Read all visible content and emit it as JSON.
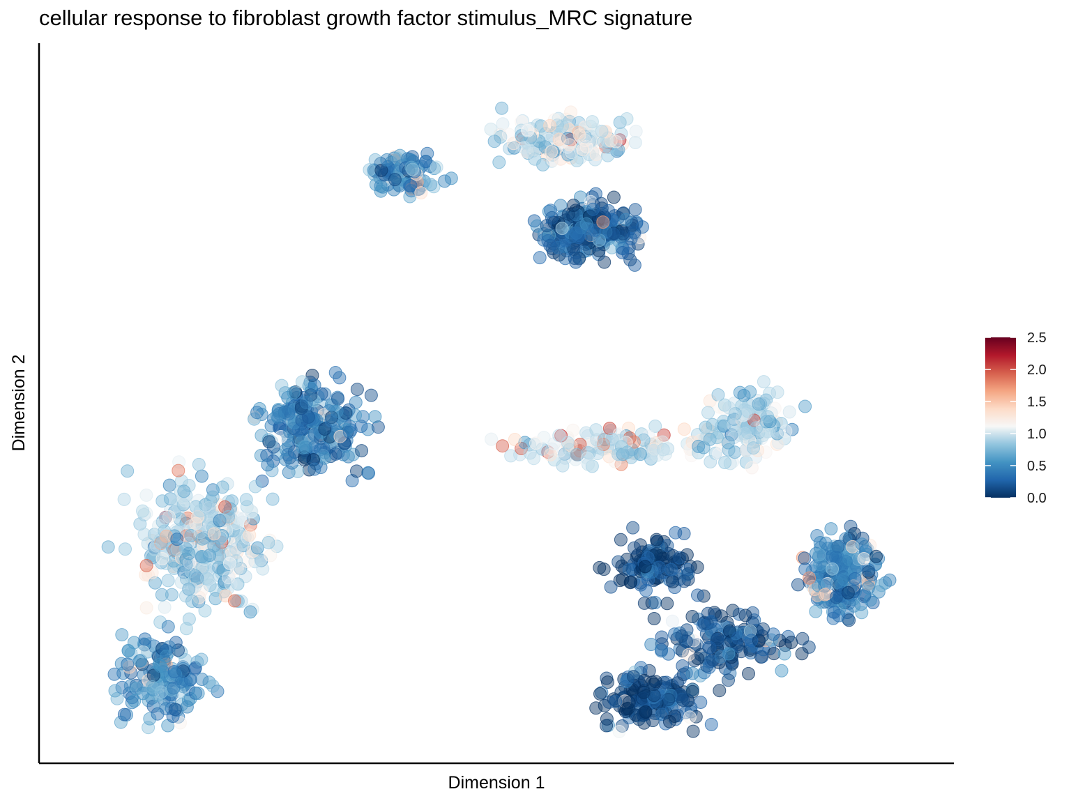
{
  "chart_data": {
    "type": "scatter",
    "title": "cellular response to fibroblast growth factor stimulus_MRC signature",
    "xlabel": "Dimension 1",
    "ylabel": "Dimension 2",
    "xlim": [
      0,
      100
    ],
    "ylim": [
      0,
      100
    ],
    "axis_ticks": "none",
    "grid": false,
    "point_alpha": 0.45,
    "colorbar": {
      "title": "",
      "position": "right",
      "range": [
        0.0,
        2.5
      ],
      "ticks": [
        "0.0",
        "0.5",
        "1.0",
        "1.5",
        "2.0",
        "2.5"
      ],
      "colors": [
        "#053061",
        "#2166ac",
        "#4393c3",
        "#92c5de",
        "#f7f7f7",
        "#fddbc7",
        "#f4a582",
        "#d6604d",
        "#b2182b",
        "#67001f"
      ]
    },
    "clusters": [
      {
        "center": [
          60.5,
          75.0
        ],
        "spread": [
          4.5,
          3.2
        ],
        "count": 260,
        "mean_value": 0.25
      },
      {
        "center": [
          58.0,
          88.0
        ],
        "spread": [
          7.0,
          2.8
        ],
        "count": 170,
        "mean_value": 1.0
      },
      {
        "center": [
          40.0,
          83.0
        ],
        "spread": [
          3.5,
          2.5
        ],
        "count": 110,
        "mean_value": 0.5
      },
      {
        "center": [
          29.5,
          46.5
        ],
        "spread": [
          4.8,
          5.2
        ],
        "count": 240,
        "mean_value": 0.4
      },
      {
        "center": [
          17.0,
          30.0
        ],
        "spread": [
          6.0,
          7.0
        ],
        "count": 330,
        "mean_value": 0.9
      },
      {
        "center": [
          12.0,
          10.5
        ],
        "spread": [
          4.0,
          5.0
        ],
        "count": 160,
        "mean_value": 0.5
      },
      {
        "center": [
          64.0,
          44.0
        ],
        "spread": [
          10.0,
          2.2
        ],
        "count": 140,
        "mean_value": 1.0
      },
      {
        "center": [
          79.0,
          47.0
        ],
        "spread": [
          4.5,
          4.0
        ],
        "count": 120,
        "mean_value": 0.9
      },
      {
        "center": [
          89.5,
          25.5
        ],
        "spread": [
          3.5,
          5.0
        ],
        "count": 220,
        "mean_value": 0.45
      },
      {
        "center": [
          68.0,
          7.5
        ],
        "spread": [
          4.5,
          3.0
        ],
        "count": 180,
        "mean_value": 0.15
      },
      {
        "center": [
          68.5,
          27.0
        ],
        "spread": [
          3.8,
          3.5
        ],
        "count": 120,
        "mean_value": 0.1
      },
      {
        "center": [
          76.0,
          16.0
        ],
        "spread": [
          6.0,
          3.5
        ],
        "count": 150,
        "mean_value": 0.2
      }
    ]
  }
}
